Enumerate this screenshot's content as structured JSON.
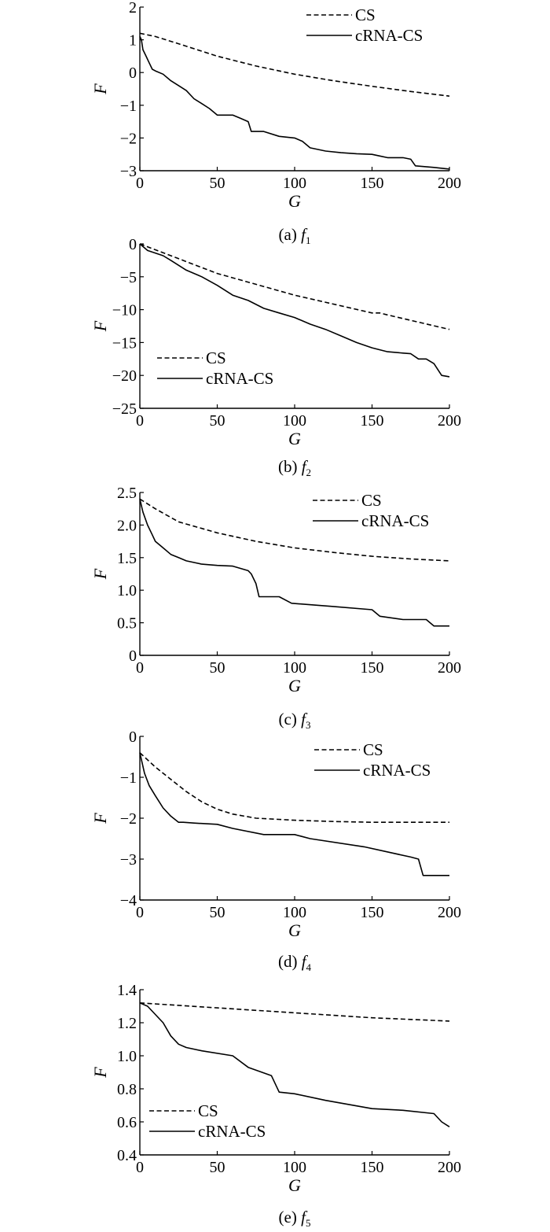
{
  "chart_data": [
    {
      "type": "line",
      "caption": {
        "prefix": "(a)",
        "fn": "f",
        "sub": "1"
      },
      "xlabel": "G",
      "ylabel": "F",
      "xlim": [
        0,
        200
      ],
      "ylim": [
        -3,
        2
      ],
      "xticks": [
        0,
        50,
        100,
        150,
        200
      ],
      "yticks": [
        -3,
        -2,
        -1,
        0,
        1,
        2
      ],
      "ytick_labels": [
        "−3",
        "−2",
        "−1",
        "0",
        "1",
        "2"
      ],
      "grid": false,
      "legend_position": "top-right",
      "series": [
        {
          "name": "CS",
          "style": "dashed",
          "x": [
            0,
            10,
            25,
            50,
            75,
            100,
            125,
            150,
            175,
            200
          ],
          "y": [
            1.2,
            1.1,
            0.88,
            0.5,
            0.2,
            -0.05,
            -0.25,
            -0.42,
            -0.58,
            -0.72
          ]
        },
        {
          "name": "cRNA-CS",
          "style": "solid",
          "x": [
            0,
            1,
            2,
            4,
            6,
            8,
            10,
            15,
            20,
            25,
            30,
            35,
            40,
            45,
            50,
            60,
            65,
            70,
            72,
            80,
            90,
            100,
            105,
            110,
            120,
            130,
            140,
            150,
            155,
            160,
            170,
            175,
            178,
            190,
            200
          ],
          "y": [
            1.1,
            1.0,
            0.7,
            0.5,
            0.3,
            0.1,
            0.05,
            -0.05,
            -0.25,
            -0.4,
            -0.55,
            -0.8,
            -0.95,
            -1.1,
            -1.3,
            -1.3,
            -1.4,
            -1.5,
            -1.8,
            -1.8,
            -1.95,
            -2.0,
            -2.1,
            -2.3,
            -2.4,
            -2.45,
            -2.48,
            -2.5,
            -2.55,
            -2.6,
            -2.6,
            -2.65,
            -2.85,
            -2.9,
            -2.95
          ]
        }
      ]
    },
    {
      "type": "line",
      "caption": {
        "prefix": "(b)",
        "fn": "f",
        "sub": "2"
      },
      "xlabel": "G",
      "ylabel": "F",
      "xlim": [
        0,
        200
      ],
      "ylim": [
        -25,
        0
      ],
      "xticks": [
        0,
        50,
        100,
        150,
        200
      ],
      "yticks": [
        -25,
        -20,
        -15,
        -10,
        -5,
        0
      ],
      "ytick_labels": [
        "−25",
        "−20",
        "−15",
        "−10",
        "−5",
        "0"
      ],
      "grid": false,
      "legend_position": "bottom-left",
      "series": [
        {
          "name": "CS",
          "style": "dashed",
          "x": [
            0,
            20,
            50,
            100,
            150,
            155,
            160,
            200
          ],
          "y": [
            0,
            -1.8,
            -4.5,
            -7.8,
            -10.5,
            -10.5,
            -10.8,
            -13
          ]
        },
        {
          "name": "cRNA-CS",
          "style": "solid",
          "x": [
            0,
            5,
            15,
            20,
            30,
            40,
            50,
            60,
            70,
            80,
            90,
            100,
            110,
            120,
            130,
            140,
            150,
            160,
            170,
            175,
            180,
            185,
            190,
            195,
            200
          ],
          "y": [
            0,
            -1,
            -1.8,
            -2.5,
            -4,
            -5,
            -6.3,
            -7.8,
            -8.6,
            -9.8,
            -10.5,
            -11.2,
            -12.2,
            -13,
            -14,
            -15,
            -15.8,
            -16.4,
            -16.6,
            -16.7,
            -17.5,
            -17.5,
            -18.2,
            -20,
            -20.2
          ]
        }
      ]
    },
    {
      "type": "line",
      "caption": {
        "prefix": "(c)",
        "fn": "f",
        "sub": "3"
      },
      "xlabel": "G",
      "ylabel": "F",
      "xlim": [
        0,
        200
      ],
      "ylim": [
        0,
        2.5
      ],
      "xticks": [
        0,
        50,
        100,
        150,
        200
      ],
      "yticks": [
        0,
        0.5,
        1.0,
        1.5,
        2.0,
        2.5
      ],
      "ytick_labels": [
        "0",
        "0.5",
        "1.0",
        "1.5",
        "2.0",
        "2.5"
      ],
      "grid": false,
      "legend_position": "top-right",
      "series": [
        {
          "name": "CS",
          "style": "dashed",
          "x": [
            0,
            10,
            25,
            50,
            75,
            100,
            125,
            150,
            175,
            200
          ],
          "y": [
            2.4,
            2.25,
            2.05,
            1.88,
            1.75,
            1.65,
            1.58,
            1.52,
            1.48,
            1.45
          ]
        },
        {
          "name": "cRNA-CS",
          "style": "solid",
          "x": [
            0,
            2,
            5,
            8,
            10,
            15,
            20,
            25,
            30,
            40,
            50,
            60,
            70,
            72,
            75,
            77,
            90,
            98,
            125,
            150,
            155,
            170,
            185,
            190,
            200
          ],
          "y": [
            2.4,
            2.2,
            2.0,
            1.85,
            1.75,
            1.65,
            1.55,
            1.5,
            1.45,
            1.4,
            1.38,
            1.37,
            1.3,
            1.25,
            1.1,
            0.9,
            0.9,
            0.8,
            0.75,
            0.7,
            0.6,
            0.55,
            0.55,
            0.45,
            0.45
          ]
        }
      ]
    },
    {
      "type": "line",
      "caption": {
        "prefix": "(d)",
        "fn": "f",
        "sub": "4"
      },
      "xlabel": "G",
      "ylabel": "F",
      "xlim": [
        0,
        200
      ],
      "ylim": [
        -4,
        0
      ],
      "xticks": [
        0,
        50,
        100,
        150,
        200
      ],
      "yticks": [
        -4,
        -3,
        -2,
        -1,
        0
      ],
      "ytick_labels": [
        "−4",
        "−3",
        "−2",
        "−1",
        "0"
      ],
      "grid": false,
      "legend_position": "top-right",
      "series": [
        {
          "name": "CS",
          "style": "dashed",
          "x": [
            0,
            10,
            20,
            30,
            40,
            50,
            60,
            75,
            100,
            125,
            150,
            175,
            200
          ],
          "y": [
            -0.4,
            -0.75,
            -1.05,
            -1.35,
            -1.6,
            -1.78,
            -1.9,
            -2.0,
            -2.05,
            -2.08,
            -2.1,
            -2.1,
            -2.1
          ]
        },
        {
          "name": "cRNA-CS",
          "style": "solid",
          "x": [
            0,
            3,
            6,
            10,
            15,
            20,
            25,
            28,
            35,
            50,
            60,
            80,
            100,
            110,
            145,
            175,
            180,
            183,
            200
          ],
          "y": [
            -0.4,
            -0.9,
            -1.2,
            -1.45,
            -1.75,
            -1.95,
            -2.1,
            -2.1,
            -2.12,
            -2.15,
            -2.25,
            -2.4,
            -2.4,
            -2.5,
            -2.7,
            -2.95,
            -3.0,
            -3.4,
            -3.4
          ]
        }
      ]
    },
    {
      "type": "line",
      "caption": {
        "prefix": "(e)",
        "fn": "f",
        "sub": "5"
      },
      "xlabel": "G",
      "ylabel": "F",
      "xlim": [
        0,
        200
      ],
      "ylim": [
        0.4,
        1.4
      ],
      "xticks": [
        0,
        50,
        100,
        150,
        200
      ],
      "yticks": [
        0.4,
        0.6,
        0.8,
        1.0,
        1.2,
        1.4
      ],
      "ytick_labels": [
        "0.4",
        "0.6",
        "0.8",
        "1.0",
        "1.2",
        "1.4"
      ],
      "grid": false,
      "legend_position": "bottom-left",
      "series": [
        {
          "name": "CS",
          "style": "dashed",
          "x": [
            0,
            50,
            100,
            150,
            200
          ],
          "y": [
            1.32,
            1.29,
            1.26,
            1.23,
            1.21
          ]
        },
        {
          "name": "cRNA-CS",
          "style": "solid",
          "x": [
            0,
            5,
            10,
            15,
            20,
            25,
            30,
            40,
            60,
            70,
            85,
            90,
            100,
            120,
            150,
            170,
            190,
            195,
            200
          ],
          "y": [
            1.32,
            1.3,
            1.25,
            1.2,
            1.12,
            1.07,
            1.05,
            1.03,
            1.0,
            0.93,
            0.88,
            0.78,
            0.77,
            0.73,
            0.68,
            0.67,
            0.65,
            0.6,
            0.57
          ]
        }
      ]
    }
  ]
}
